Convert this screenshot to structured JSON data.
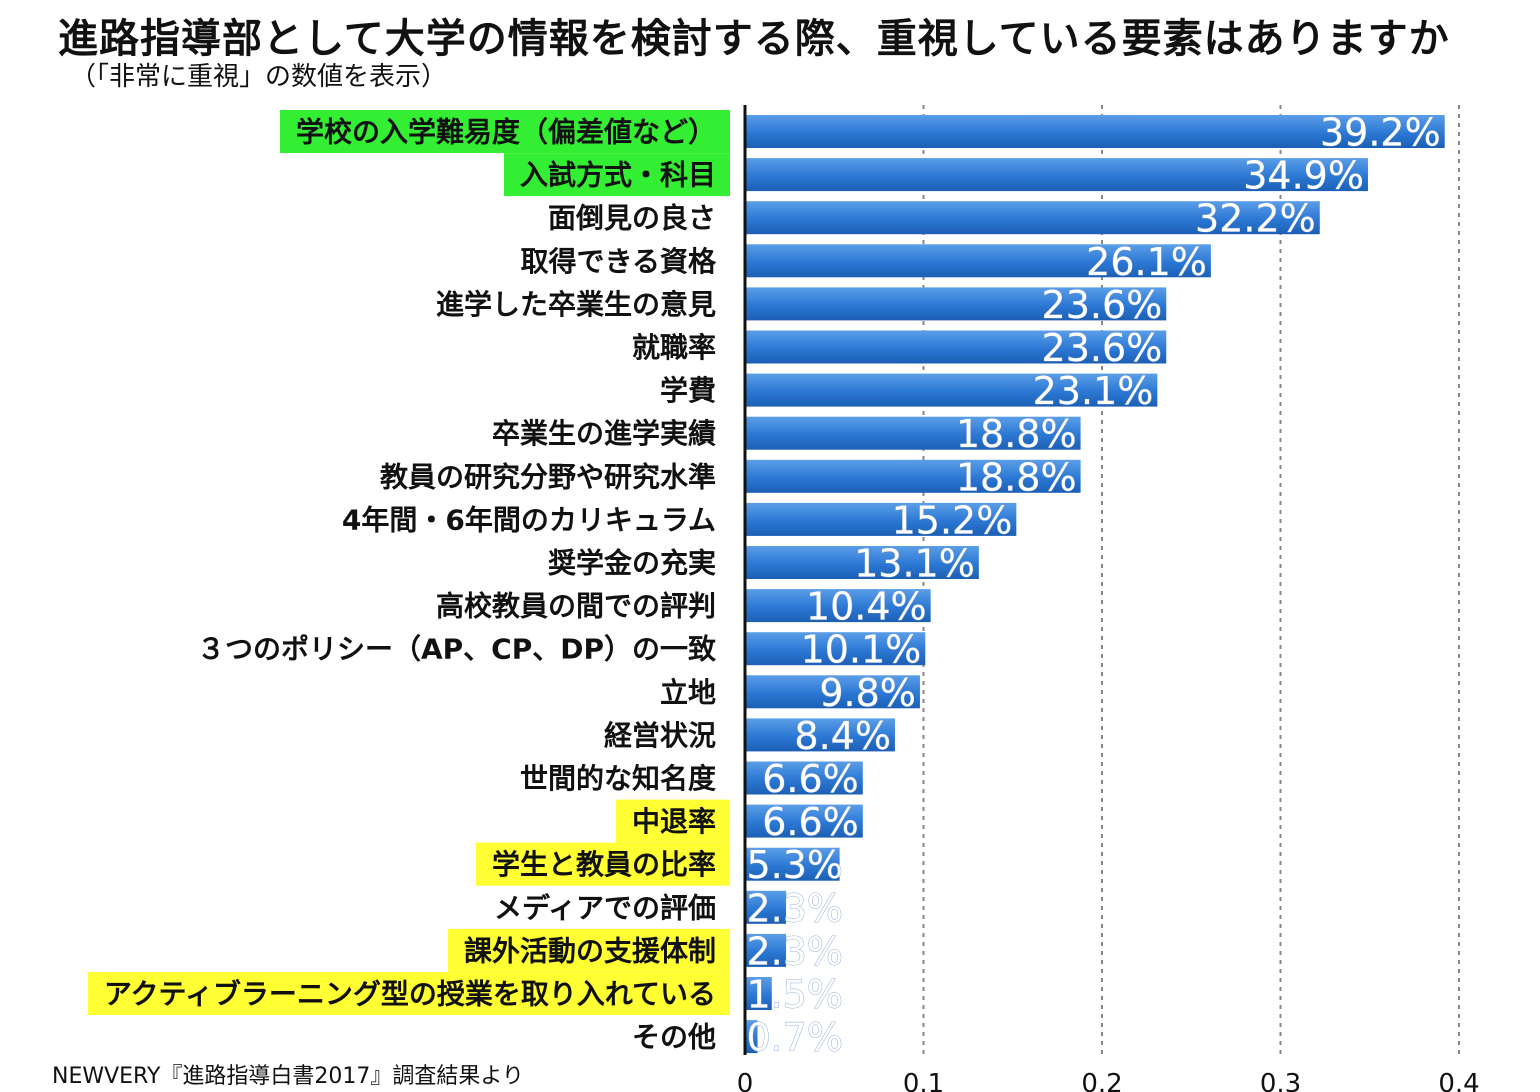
{
  "title": "進路指導部として大学の情報を検討する際、重視している要素はありますか",
  "subtitle": "（「非常に重視」の数値を表示）",
  "source": "NEWVERY『進路指導白書2017』調査結果より",
  "colors": {
    "bar": "#2b78d4",
    "highlight_green": "#33ee33",
    "highlight_yellow": "#ffff33",
    "gridline": "#888888"
  },
  "chart_data": {
    "type": "bar",
    "orientation": "horizontal",
    "title": "進路指導部として大学の情報を検討する際、重視している要素はありますか",
    "subtitle": "（「非常に重視」の数値を表示）",
    "categories": [
      "学校の入学難易度（偏差値など）",
      "入試方式・科目",
      "面倒見の良さ",
      "取得できる資格",
      "進学した卒業生の意見",
      "就職率",
      "学費",
      "卒業生の進学実績",
      "教員の研究分野や研究水準",
      "4年間・6年間のカリキュラム",
      "奨学金の充実",
      "高校教員の間での評判",
      "３つのポリシー（AP、CP、DP）の一致",
      "立地",
      "経営状況",
      "世間的な知名度",
      "中退率",
      "学生と教員の比率",
      "メディアでの評価",
      "課外活動の支援体制",
      "アクティブラーニング型の授業を取り入れている",
      "その他"
    ],
    "values": [
      0.392,
      0.349,
      0.322,
      0.261,
      0.236,
      0.236,
      0.231,
      0.188,
      0.188,
      0.152,
      0.131,
      0.104,
      0.101,
      0.098,
      0.084,
      0.066,
      0.066,
      0.053,
      0.023,
      0.023,
      0.015,
      0.007
    ],
    "value_labels": [
      "39.2%",
      "34.9%",
      "32.2%",
      "26.1%",
      "23.6%",
      "23.6%",
      "23.1%",
      "18.8%",
      "18.8%",
      "15.2%",
      "13.1%",
      "10.4%",
      "10.1%",
      "9.8%",
      "8.4%",
      "6.6%",
      "6.6%",
      "5.3%",
      "2.3%",
      "2.3%",
      "1.5%",
      "0.7%"
    ],
    "highlight": [
      "green",
      "green",
      "none",
      "none",
      "none",
      "none",
      "none",
      "none",
      "none",
      "none",
      "none",
      "none",
      "none",
      "none",
      "none",
      "none",
      "yellow",
      "yellow",
      "none",
      "yellow",
      "yellow",
      "none"
    ],
    "xlim": [
      0,
      0.4
    ],
    "xticks": [
      0,
      0.1,
      0.2,
      0.3,
      0.4
    ],
    "xtick_labels": [
      "0",
      "0.1",
      "0.2",
      "0.3",
      "0.4"
    ],
    "grid": "vertical dashed"
  }
}
